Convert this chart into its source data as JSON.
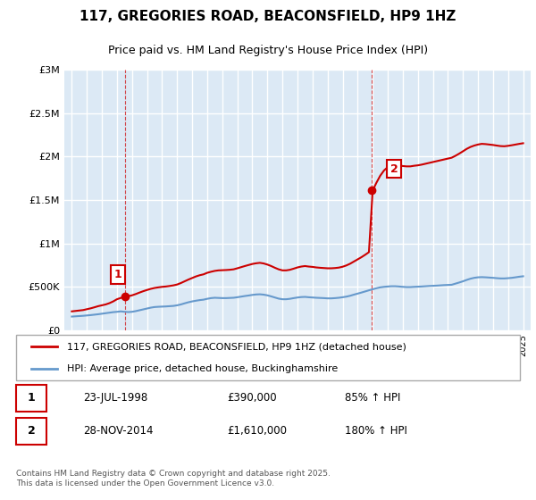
{
  "title": "117, GREGORIES ROAD, BEACONSFIELD, HP9 1HZ",
  "subtitle": "Price paid vs. HM Land Registry's House Price Index (HPI)",
  "legend_line1": "117, GREGORIES ROAD, BEACONSFIELD, HP9 1HZ (detached house)",
  "legend_line2": "HPI: Average price, detached house, Buckinghamshire",
  "footnote": "Contains HM Land Registry data © Crown copyright and database right 2025.\nThis data is licensed under the Open Government Licence v3.0.",
  "point1_label": "1",
  "point1_date": "23-JUL-1998",
  "point1_price": "£390,000",
  "point1_hpi": "85% ↑ HPI",
  "point1_x": 1998.55,
  "point1_y": 390000,
  "point2_label": "2",
  "point2_date": "28-NOV-2014",
  "point2_price": "£1,610,000",
  "point2_hpi": "180% ↑ HPI",
  "point2_x": 2014.91,
  "point2_y": 1610000,
  "red_color": "#cc0000",
  "blue_color": "#6699cc",
  "background_color": "#dce9f5",
  "plot_bg_color": "#dce9f5",
  "grid_color": "#ffffff",
  "ylim": [
    0,
    3000000
  ],
  "xlim": [
    1994.5,
    2025.5
  ],
  "hpi_series_x": [
    1995,
    1995.25,
    1995.5,
    1995.75,
    1996,
    1996.25,
    1996.5,
    1996.75,
    1997,
    1997.25,
    1997.5,
    1997.75,
    1998,
    1998.25,
    1998.5,
    1998.75,
    1999,
    1999.25,
    1999.5,
    1999.75,
    2000,
    2000.25,
    2000.5,
    2000.75,
    2001,
    2001.25,
    2001.5,
    2001.75,
    2002,
    2002.25,
    2002.5,
    2002.75,
    2003,
    2003.25,
    2003.5,
    2003.75,
    2004,
    2004.25,
    2004.5,
    2004.75,
    2005,
    2005.25,
    2005.5,
    2005.75,
    2006,
    2006.25,
    2006.5,
    2006.75,
    2007,
    2007.25,
    2007.5,
    2007.75,
    2008,
    2008.25,
    2008.5,
    2008.75,
    2009,
    2009.25,
    2009.5,
    2009.75,
    2010,
    2010.25,
    2010.5,
    2010.75,
    2011,
    2011.25,
    2011.5,
    2011.75,
    2012,
    2012.25,
    2012.5,
    2012.75,
    2013,
    2013.25,
    2013.5,
    2013.75,
    2014,
    2014.25,
    2014.5,
    2014.75,
    2015,
    2015.25,
    2015.5,
    2015.75,
    2016,
    2016.25,
    2016.5,
    2016.75,
    2017,
    2017.25,
    2017.5,
    2017.75,
    2018,
    2018.25,
    2018.5,
    2018.75,
    2019,
    2019.25,
    2019.5,
    2019.75,
    2020,
    2020.25,
    2020.5,
    2020.75,
    2021,
    2021.25,
    2021.5,
    2021.75,
    2022,
    2022.25,
    2022.5,
    2022.75,
    2023,
    2023.25,
    2023.5,
    2023.75,
    2024,
    2024.25,
    2024.5,
    2024.75,
    2025
  ],
  "hpi_series_y": [
    155000,
    158000,
    161000,
    164000,
    168000,
    172000,
    177000,
    182000,
    188000,
    194000,
    200000,
    206000,
    210000,
    215000,
    210000,
    207000,
    210000,
    218000,
    228000,
    238000,
    248000,
    258000,
    265000,
    268000,
    270000,
    272000,
    275000,
    278000,
    285000,
    295000,
    308000,
    320000,
    330000,
    338000,
    345000,
    350000,
    360000,
    368000,
    372000,
    370000,
    368000,
    368000,
    370000,
    372000,
    378000,
    385000,
    392000,
    398000,
    405000,
    410000,
    412000,
    408000,
    400000,
    388000,
    375000,
    362000,
    355000,
    355000,
    360000,
    368000,
    375000,
    380000,
    382000,
    378000,
    375000,
    372000,
    370000,
    368000,
    365000,
    365000,
    368000,
    372000,
    378000,
    385000,
    395000,
    408000,
    420000,
    432000,
    445000,
    458000,
    470000,
    482000,
    492000,
    498000,
    502000,
    505000,
    505000,
    502000,
    498000,
    495000,
    495000,
    498000,
    500000,
    502000,
    505000,
    508000,
    510000,
    512000,
    515000,
    518000,
    520000,
    522000,
    535000,
    548000,
    562000,
    578000,
    592000,
    602000,
    608000,
    610000,
    608000,
    605000,
    602000,
    598000,
    595000,
    595000,
    598000,
    602000,
    608000,
    615000,
    620000
  ],
  "red_series_x": [
    1995,
    1995.25,
    1995.5,
    1995.75,
    1996,
    1996.25,
    1996.5,
    1996.75,
    1997,
    1997.25,
    1997.5,
    1997.75,
    1998,
    1998.25,
    1998.5,
    1998.75,
    1999,
    1999.25,
    1999.5,
    1999.75,
    2000,
    2000.25,
    2000.5,
    2000.75,
    2001,
    2001.25,
    2001.5,
    2001.75,
    2002,
    2002.25,
    2002.5,
    2002.75,
    2003,
    2003.25,
    2003.5,
    2003.75,
    2004,
    2004.25,
    2004.5,
    2004.75,
    2005,
    2005.25,
    2005.5,
    2005.75,
    2006,
    2006.25,
    2006.5,
    2006.75,
    2007,
    2007.25,
    2007.5,
    2007.75,
    2008,
    2008.25,
    2008.5,
    2008.75,
    2009,
    2009.25,
    2009.5,
    2009.75,
    2010,
    2010.25,
    2010.5,
    2010.75,
    2011,
    2011.25,
    2011.5,
    2011.75,
    2012,
    2012.25,
    2012.5,
    2012.75,
    2013,
    2013.25,
    2013.5,
    2013.75,
    2014,
    2014.25,
    2014.5,
    2014.75,
    2015,
    2015.25,
    2015.5,
    2015.75,
    2016,
    2016.25,
    2016.5,
    2016.75,
    2017,
    2017.25,
    2017.5,
    2017.75,
    2018,
    2018.25,
    2018.5,
    2018.75,
    2019,
    2019.25,
    2019.5,
    2019.75,
    2020,
    2020.25,
    2020.5,
    2020.75,
    2021,
    2021.25,
    2021.5,
    2021.75,
    2022,
    2022.25,
    2022.5,
    2022.75,
    2023,
    2023.25,
    2023.5,
    2023.75,
    2024,
    2024.25,
    2024.5,
    2024.75,
    2025
  ],
  "red_series_y": [
    215000,
    220000,
    225000,
    230000,
    240000,
    250000,
    262000,
    275000,
    285000,
    295000,
    310000,
    330000,
    355000,
    370000,
    385000,
    390000,
    400000,
    415000,
    432000,
    448000,
    462000,
    475000,
    485000,
    492000,
    498000,
    502000,
    508000,
    515000,
    525000,
    542000,
    562000,
    582000,
    600000,
    618000,
    632000,
    642000,
    660000,
    672000,
    682000,
    688000,
    690000,
    692000,
    695000,
    700000,
    712000,
    725000,
    738000,
    750000,
    762000,
    770000,
    775000,
    768000,
    755000,
    738000,
    718000,
    700000,
    688000,
    688000,
    695000,
    708000,
    722000,
    732000,
    738000,
    732000,
    728000,
    722000,
    718000,
    715000,
    712000,
    712000,
    715000,
    720000,
    730000,
    745000,
    765000,
    790000,
    815000,
    840000,
    868000,
    898000,
    1610000,
    1700000,
    1780000,
    1840000,
    1880000,
    1905000,
    1908000,
    1900000,
    1892000,
    1888000,
    1888000,
    1895000,
    1900000,
    1908000,
    1918000,
    1928000,
    1938000,
    1948000,
    1958000,
    1968000,
    1978000,
    1988000,
    2010000,
    2035000,
    2062000,
    2090000,
    2112000,
    2128000,
    2140000,
    2148000,
    2145000,
    2140000,
    2135000,
    2128000,
    2122000,
    2120000,
    2125000,
    2132000,
    2140000,
    2148000,
    2155000
  ]
}
